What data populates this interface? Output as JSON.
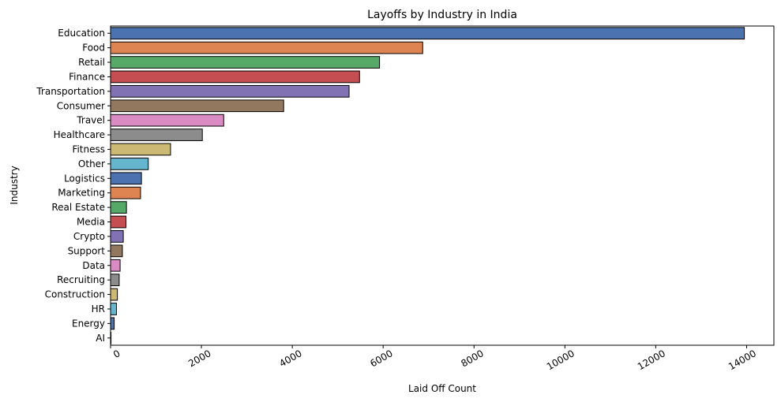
{
  "chart_data": {
    "type": "bar",
    "orientation": "horizontal",
    "title": "Layoffs by Industry in India",
    "xlabel": "Laid Off Count",
    "ylabel": "Industry",
    "xlim": [
      0,
      14600
    ],
    "xticks": [
      0,
      2000,
      4000,
      6000,
      8000,
      10000,
      12000,
      14000
    ],
    "tick_rotation": 30,
    "grid": false,
    "legend": "none",
    "categories": [
      "Education",
      "Food",
      "Retail",
      "Finance",
      "Transportation",
      "Consumer",
      "Travel",
      "Healthcare",
      "Fitness",
      "Other",
      "Logistics",
      "Marketing",
      "Real Estate",
      "Media",
      "Crypto",
      "Support",
      "Data",
      "Recruiting",
      "Construction",
      "HR",
      "Energy",
      "AI"
    ],
    "values": [
      13950,
      6870,
      5920,
      5480,
      5250,
      3810,
      2490,
      2020,
      1320,
      830,
      680,
      660,
      350,
      340,
      280,
      260,
      210,
      190,
      150,
      130,
      80,
      10
    ],
    "palette": [
      "#4c72b0",
      "#dd8452",
      "#55a868",
      "#c44e52",
      "#8172b3",
      "#937860",
      "#da8bc3",
      "#8c8c8c",
      "#ccb974",
      "#64b5cd"
    ],
    "bar_edge_color": "#000000"
  }
}
